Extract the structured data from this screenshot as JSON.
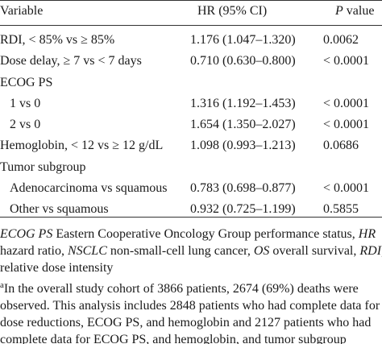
{
  "table": {
    "headers": {
      "variable": "Variable",
      "hr": "HR (95% CI)",
      "p_italic": "P",
      "p_rest": " value"
    },
    "rows": [
      {
        "variable": "RDI, < 85% vs ≥ 85%",
        "hr": "1.176 (1.047–1.320)",
        "p": "0.0062",
        "indent": false
      },
      {
        "variable": "Dose delay, ≥ 7 vs < 7 days",
        "hr": "0.710 (0.630–0.800)",
        "p": "< 0.0001",
        "indent": false
      },
      {
        "variable": "ECOG PS",
        "hr": "",
        "p": "",
        "indent": false
      },
      {
        "variable": "1 vs 0",
        "hr": "1.316 (1.192–1.453)",
        "p": "< 0.0001",
        "indent": true
      },
      {
        "variable": "2 vs 0",
        "hr": "1.654 (1.350–2.027)",
        "p": "< 0.0001",
        "indent": true
      },
      {
        "variable": "Hemoglobin, < 12 vs ≥ 12 g/dL",
        "hr": "1.098 (0.993–1.213)",
        "p": "0.0686",
        "indent": false
      },
      {
        "variable": "Tumor subgroup",
        "hr": "",
        "p": "",
        "indent": false
      },
      {
        "variable": "Adenocarcinoma vs squamous",
        "hr": "0.783 (0.698–0.877)",
        "p": "< 0.0001",
        "indent": true
      },
      {
        "variable": "Other vs squamous",
        "hr": "0.932 (0.725–1.199)",
        "p": "0.5855",
        "indent": true
      }
    ]
  },
  "footnotes": {
    "abbrev": [
      {
        "term": "ECOG PS",
        "text": " Eastern Cooperative Oncology Group performance status, "
      },
      {
        "term": "HR",
        "text": ""
      },
      {
        "term": "",
        "text": "hazard ratio, "
      },
      {
        "term": "NSCLC",
        "text": " non-small-cell lung cancer, "
      },
      {
        "term": "OS",
        "text": " overall survival, "
      },
      {
        "term": "RDI",
        "text": ","
      },
      {
        "term": "",
        "text": "relative dose intensity"
      }
    ],
    "note_marker": "a",
    "note_lines": [
      "In the overall study cohort of 3866 patients, 2674 (69%) deaths were",
      "observed. This analysis includes 2848 patients who had complete data for",
      "dose reductions, ECOG PS, and hemoglobin and 2127 patients who had",
      "complete data for ECOG PS, and hemoglobin, and tumor subgroup"
    ]
  }
}
